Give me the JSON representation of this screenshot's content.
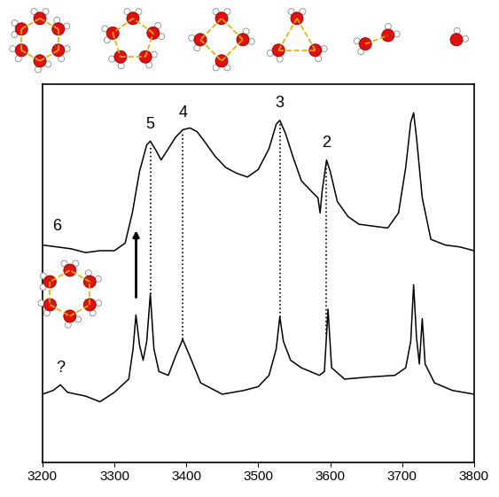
{
  "chart_data": {
    "type": "line",
    "xlim": [
      3200,
      3800
    ],
    "xticks": [
      3200,
      3300,
      3400,
      3500,
      3600,
      3700,
      3800
    ],
    "ylim": [
      0,
      10
    ],
    "yticks": [],
    "tick_labels": "x",
    "grid": false,
    "color": "#000000",
    "series": [
      {
        "name": "6",
        "color": "#000000",
        "x": [
          3200,
          3220,
          3240,
          3260,
          3280,
          3300,
          3315,
          3325,
          3335,
          3345,
          3350,
          3358,
          3365,
          3375,
          3385,
          3395,
          3405,
          3415,
          3425,
          3440,
          3455,
          3470,
          3485,
          3500,
          3515,
          3525,
          3530,
          3538,
          3548,
          3560,
          3575,
          3583,
          3586,
          3589,
          3595,
          3600,
          3610,
          3625,
          3640,
          3660,
          3680,
          3695,
          3705,
          3712,
          3716,
          3720,
          3728,
          3740,
          3760,
          3780,
          3800
        ],
        "values": [
          5.75,
          5.7,
          5.65,
          5.55,
          5.6,
          5.6,
          5.8,
          6.6,
          7.7,
          8.4,
          8.5,
          8.25,
          8.0,
          8.3,
          8.6,
          8.8,
          8.85,
          8.75,
          8.5,
          8.1,
          7.8,
          7.65,
          7.55,
          7.75,
          8.3,
          8.95,
          9.05,
          8.7,
          8.1,
          7.45,
          7.15,
          7.0,
          6.6,
          7.2,
          8.0,
          7.7,
          6.9,
          6.5,
          6.3,
          6.25,
          6.2,
          6.6,
          7.8,
          9.0,
          9.25,
          8.6,
          7.0,
          5.9,
          5.75,
          5.7,
          5.6
        ],
        "annotations": [
          {
            "text": "5",
            "x": 3350
          },
          {
            "text": "4",
            "x": 3395
          },
          {
            "text": "3",
            "x": 3530
          },
          {
            "text": "2",
            "x": 3595
          }
        ]
      },
      {
        "color": "#000000",
        "x": [
          3200,
          3215,
          3225,
          3235,
          3260,
          3280,
          3300,
          3320,
          3326,
          3330,
          3335,
          3340,
          3345,
          3350,
          3355,
          3362,
          3375,
          3385,
          3395,
          3405,
          3420,
          3450,
          3480,
          3500,
          3515,
          3525,
          3530,
          3535,
          3545,
          3560,
          3585,
          3592,
          3597,
          3602,
          3620,
          3650,
          3690,
          3705,
          3712,
          3716,
          3720,
          3724,
          3728,
          3732,
          3745,
          3770,
          3800
        ],
        "values": [
          1.8,
          1.9,
          2.05,
          1.85,
          1.75,
          1.6,
          1.85,
          2.2,
          3.0,
          3.9,
          3.1,
          2.7,
          3.2,
          4.45,
          3.0,
          2.4,
          2.3,
          2.8,
          3.25,
          2.8,
          2.1,
          1.8,
          1.9,
          2.0,
          2.3,
          3.0,
          3.85,
          3.2,
          2.7,
          2.5,
          2.3,
          2.4,
          4.05,
          2.5,
          2.2,
          2.25,
          2.3,
          2.5,
          3.2,
          4.7,
          3.3,
          2.6,
          3.8,
          2.6,
          2.1,
          1.9,
          1.8
        ],
        "annotations": [
          {
            "text": "?",
            "x": 3225
          }
        ]
      }
    ]
  }
}
